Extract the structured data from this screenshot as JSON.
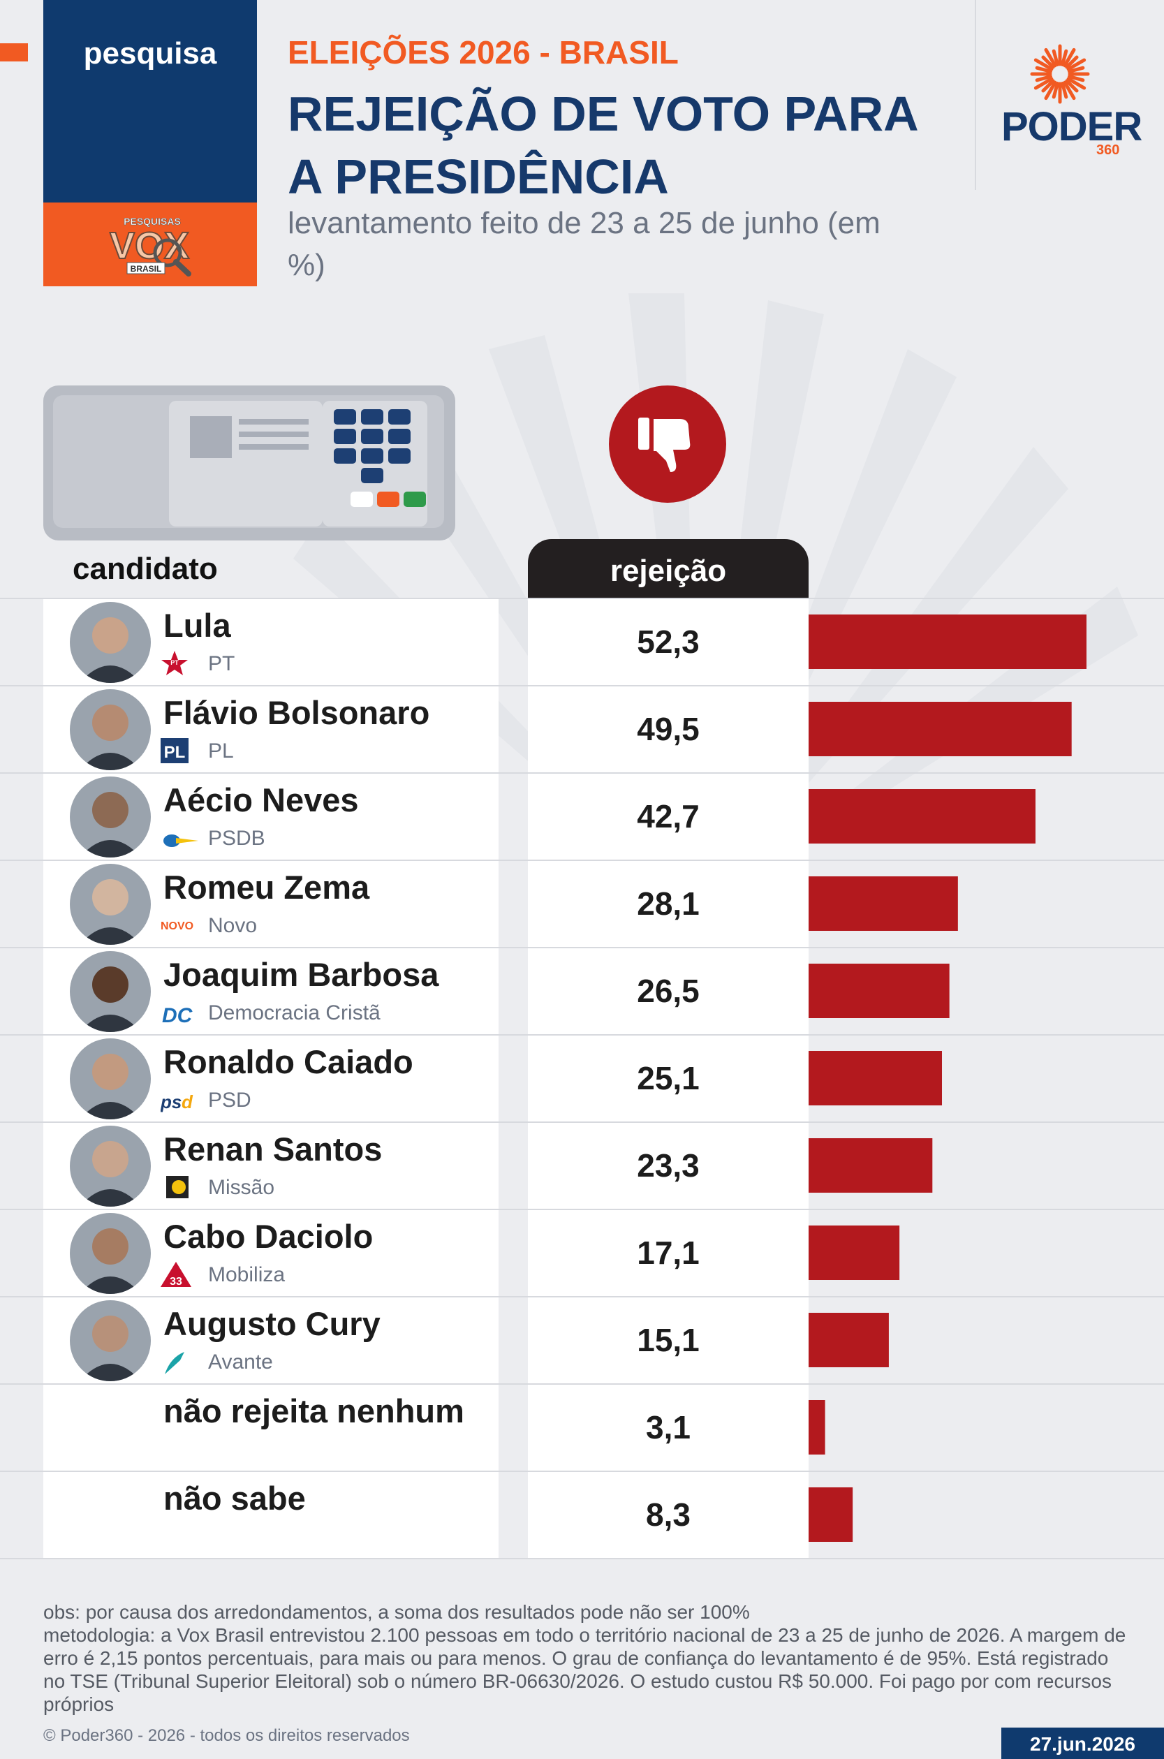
{
  "header": {
    "tag": "pesquisa",
    "kicker": "ELEIÇÕES 2026 - BRASIL",
    "title": "REJEIÇÃO DE VOTO PARA A PRESIDÊNCIA",
    "subtitle": "levantamento feito de 23 a 25 de junho (em %)",
    "source_logo": {
      "top": "PESQUISAS",
      "main": "VOX",
      "bottom": "BRASIL"
    },
    "publisher_logo": {
      "main": "PODER",
      "sub": "360"
    }
  },
  "columns": {
    "candidate": "candidato",
    "rejection": "rejeição"
  },
  "rows": [
    {
      "name": "Lula",
      "party": "PT",
      "party_logo": "pt-star-icon",
      "value_label": "52,3"
    },
    {
      "name": "Flávio Bolsonaro",
      "party": "PL",
      "party_logo": "pl-logo-icon",
      "value_label": "49,5"
    },
    {
      "name": "Aécio Neves",
      "party": "PSDB",
      "party_logo": "psdb-toucan-icon",
      "value_label": "42,7"
    },
    {
      "name": "Romeu Zema",
      "party": "Novo",
      "party_logo": "novo-logo-icon",
      "value_label": "28,1"
    },
    {
      "name": "Joaquim Barbosa",
      "party": "Democracia Cristã",
      "party_logo": "dc-logo-icon",
      "value_label": "26,5"
    },
    {
      "name": "Ronaldo Caiado",
      "party": "PSD",
      "party_logo": "psd-logo-icon",
      "value_label": "25,1"
    },
    {
      "name": "Renan Santos",
      "party": "Missão",
      "party_logo": "missao-logo-icon",
      "value_label": "23,3"
    },
    {
      "name": "Cabo Daciolo",
      "party": "Mobiliza",
      "party_logo": "mobiliza-33-icon",
      "value_label": "17,1"
    },
    {
      "name": "Augusto Cury",
      "party": "Avante",
      "party_logo": "avante-arrow-icon",
      "value_label": "15,1"
    },
    {
      "name": "não rejeita nenhum",
      "party": "",
      "party_logo": "",
      "value_label": "3,1"
    },
    {
      "name": "não sabe",
      "party": "",
      "party_logo": "",
      "value_label": "8,3"
    }
  ],
  "chart_data": {
    "type": "bar",
    "orientation": "horizontal",
    "categories": [
      "Lula",
      "Flávio Bolsonaro",
      "Aécio Neves",
      "Romeu Zema",
      "Joaquim Barbosa",
      "Ronaldo Caiado",
      "Renan Santos",
      "Cabo Daciolo",
      "Augusto Cury",
      "não rejeita nenhum",
      "não sabe"
    ],
    "values": [
      52.3,
      49.5,
      42.7,
      28.1,
      26.5,
      25.1,
      23.3,
      17.1,
      15.1,
      3.1,
      8.3
    ],
    "value_labels": [
      "52,3",
      "49,5",
      "42,7",
      "28,1",
      "26,5",
      "25,1",
      "23,3",
      "17,1",
      "15,1",
      "3,1",
      "8,3"
    ],
    "title": "REJEIÇÃO DE VOTO PARA A PRESIDÊNCIA",
    "xlabel": "rejeição",
    "ylabel": "candidato",
    "unit": "%",
    "xlim": [
      0,
      55
    ],
    "grid": false,
    "legend": "none",
    "bar_color": "#b3191e"
  },
  "icons": {
    "thumb": "thumbs-down-icon",
    "ballot": "voting-machine-icon"
  },
  "colors": {
    "navy": "#0f3a6e",
    "orange": "#f15a22",
    "bar": "#b3191e",
    "header_dark": "#231f20"
  },
  "notes": {
    "obs": "obs: por causa dos arredondamentos, a soma dos resultados pode não ser 100%",
    "method": "metodologia: a Vox Brasil entrevistou 2.100 pessoas em todo o território nacional de 23 a 25 de junho de 2026. A margem de erro é 2,15 pontos percentuais, para mais ou para menos. O grau de confiança do levantamento é de 95%. Está registrado no TSE (Tribunal Superior Eleitoral) sob o número BR-06630/2026. O estudo custou R$ 50.000. Foi pago por com recursos próprios"
  },
  "footer": {
    "copyright": "© Poder360 - 2026 - todos os direitos reservados",
    "date": "27.jun.2026"
  }
}
